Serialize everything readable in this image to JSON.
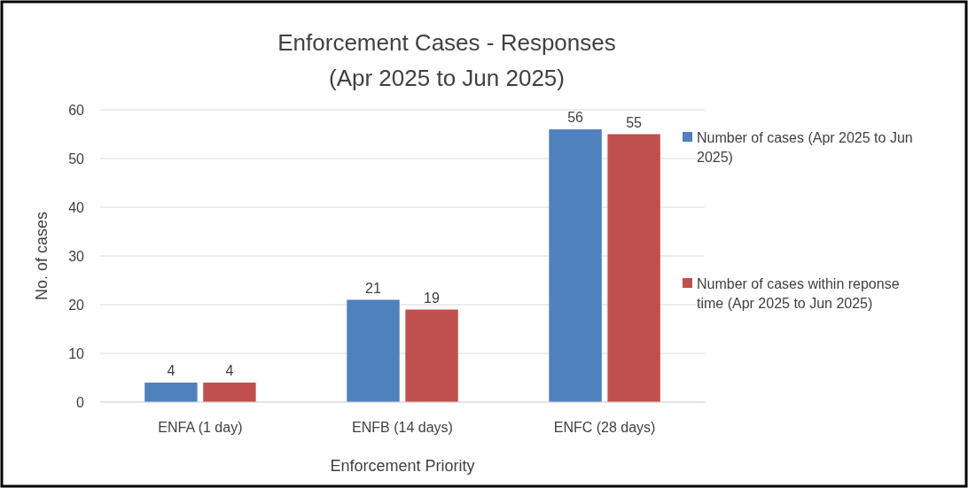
{
  "chart_data": {
    "type": "bar",
    "title": "Enforcement Cases - Responses",
    "subtitle": "(Apr 2025 to Jun 2025)",
    "xlabel": "Enforcement Priority",
    "ylabel": "No. of cases",
    "categories": [
      "ENFA (1 day)",
      "ENFB (14 days)",
      "ENFC (28 days)"
    ],
    "series": [
      {
        "name": "Number of cases (Apr 2025 to Jun 2025)",
        "color": "#4f81bd",
        "values": [
          4,
          21,
          56
        ]
      },
      {
        "name": "Number of cases within reponse time (Apr 2025 to Jun 2025)",
        "color": "#c0504d",
        "values": [
          4,
          19,
          55
        ]
      }
    ],
    "ylim": [
      0,
      60
    ],
    "yticks": [
      0,
      10,
      20,
      30,
      40,
      50,
      60
    ],
    "grid": "y",
    "legend": "right",
    "data_labels": true
  }
}
